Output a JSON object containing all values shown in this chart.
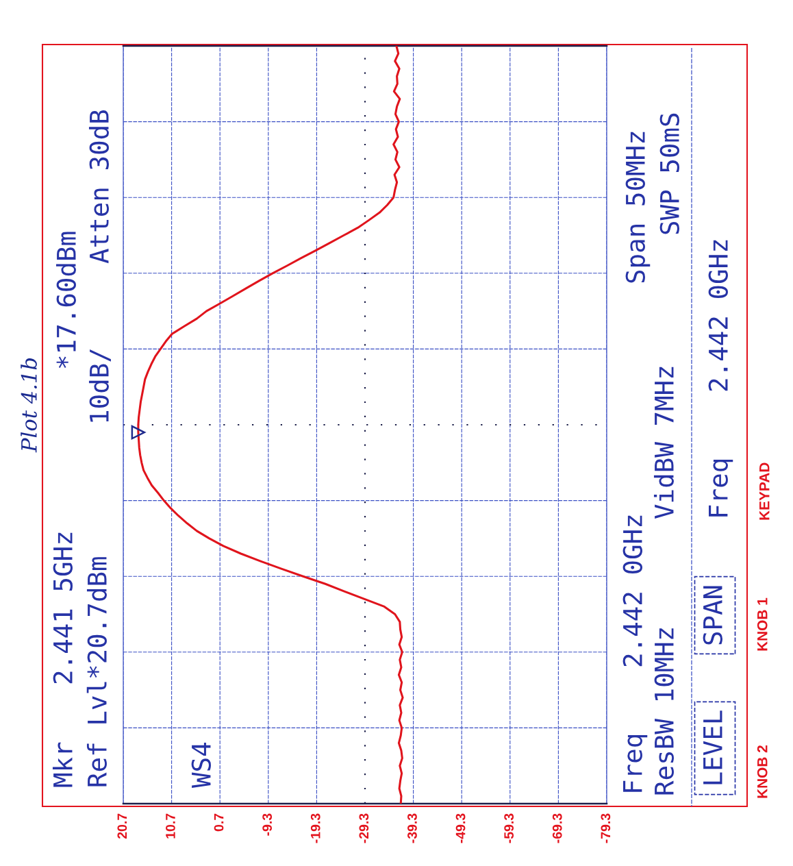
{
  "chart_data": {
    "type": "line",
    "orientation": "horizontal",
    "title": "Plot 4.1b",
    "categories": [
      null,
      null,
      null,
      null,
      null,
      null,
      null,
      null,
      null,
      null,
      null,
      null,
      null,
      null,
      null,
      null,
      null,
      null,
      null,
      null,
      null,
      null,
      null,
      null,
      null,
      null,
      null,
      null,
      null,
      null,
      null,
      null,
      null,
      null,
      null,
      null,
      null,
      null,
      null,
      null,
      null,
      null,
      null,
      null,
      null,
      null,
      null,
      null,
      null,
      null,
      null,
      null,
      null,
      null,
      null,
      null,
      null,
      null,
      null,
      null,
      null,
      null,
      null,
      null,
      null,
      null,
      null,
      null,
      null,
      null,
      null,
      null,
      null,
      null,
      null,
      null,
      null,
      null,
      null,
      null,
      null,
      null,
      null,
      null,
      null,
      null,
      null,
      null,
      null,
      null,
      null,
      null,
      null,
      null,
      null,
      null,
      null,
      null,
      null,
      null,
      null
    ],
    "series": [
      {
        "color": "#e0141c",
        "values": [
          -35.8,
          -36.2,
          -35.5,
          -36.4,
          -35.9,
          -36.0,
          -35.3,
          -36.5,
          -35.9,
          -35.6,
          -36.3,
          -35.7,
          -36.1,
          -35.2,
          -36.0,
          -35.6,
          -36.4,
          -35.4,
          -35.9,
          -35.5,
          -35.2,
          -33.9,
          -32.3,
          -30.1,
          -27.8,
          -24.9,
          -22.0,
          -19.1,
          -16.1,
          -13.2,
          -10.2,
          -7.4,
          -4.7,
          -2.0,
          0.7,
          3.5,
          5.5,
          8.1,
          10.6,
          11.9,
          13.0,
          14.1,
          14.9,
          15.6,
          16.2,
          16.5,
          16.8,
          17.1,
          17.3,
          17.5,
          17.6,
          17.6,
          17.5,
          17.4,
          17.2,
          16.9,
          16.5,
          15.7,
          14.8,
          13.5,
          12.3,
          10.9,
          9.3,
          7.5,
          5.5,
          2.9,
          0.0,
          -3.6,
          -7.7,
          -12.0,
          -16.5,
          -21.1,
          -25.1,
          -29.2,
          -33.3,
          -35.5,
          -36.5,
          -36.6,
          -36.9,
          -36.4,
          -37.0,
          -36.5,
          -36.8,
          -36.3,
          -36.9,
          -36.6,
          -37.1,
          -36.5,
          -36.8,
          -36.4,
          -36.9,
          -36.7,
          -36.3,
          -36.8,
          -37.0,
          -36.5,
          -36.9,
          -36.6,
          -36.4,
          -36.8,
          -36.7
        ]
      },
      {
        "type": "scatter",
        "marker": "triangle",
        "color": "#1f2a8c",
        "values": [
          null,
          null,
          null,
          null,
          null,
          null,
          null,
          null,
          null,
          null,
          null,
          null,
          null,
          null,
          null,
          null,
          null,
          null,
          null,
          null,
          null,
          null,
          null,
          null,
          null,
          null,
          null,
          null,
          null,
          null,
          null,
          null,
          null,
          null,
          null,
          null,
          null,
          null,
          null,
          null,
          null,
          null,
          null,
          null,
          null,
          null,
          null,
          null,
          null,
          null,
          null,
          17.6,
          null,
          null,
          null,
          null,
          null,
          null,
          null,
          null,
          null,
          null,
          null,
          null,
          null,
          null,
          null,
          null,
          null,
          null,
          null,
          null,
          null,
          null,
          null,
          null,
          null,
          null,
          null,
          null,
          null,
          null,
          null,
          null,
          null,
          null,
          null,
          null,
          null,
          null,
          null,
          null,
          null,
          null,
          null,
          null,
          null,
          null,
          null,
          null,
          null
        ]
      }
    ],
    "xlim": [
      20.7,
      -79.3
    ],
    "xticks": [
      20.7,
      10.7,
      0.7,
      -9.3,
      -19.3,
      -29.3,
      -39.3,
      -49.3,
      -59.3,
      -69.3,
      -79.3
    ],
    "grid": true,
    "tick_labels": "x",
    "annotations": [
      "Mkr",
      "2.441 5GHz",
      "*17.60dBm",
      "Ref Lvl*20.7dBm",
      "10dB/",
      "Atten 30dB",
      "WS4",
      "Freq",
      "2.442 0GHz",
      "ResBW 10MHz",
      "VidBW 7MHz",
      "Span 50MHz",
      "SWP 50mS",
      "Freq",
      "2.442 0GHz",
      "LEVEL",
      "SPAN",
      "KNOB 2",
      "KNOB 1",
      "KEYPAD"
    ]
  }
}
